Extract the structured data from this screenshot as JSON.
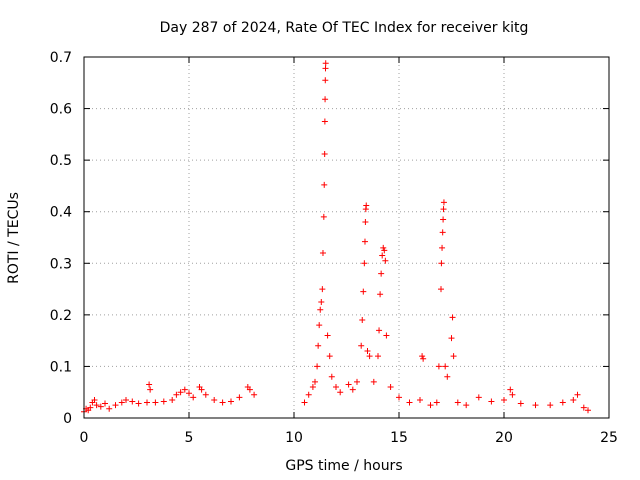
{
  "chart_data": {
    "type": "scatter",
    "title": "Day 287 of 2024, Rate Of TEC Index for receiver kitg",
    "xlabel": "GPS time / hours",
    "ylabel": "ROTI / TECUs",
    "xlim": [
      0,
      25
    ],
    "ylim": [
      0,
      0.7
    ],
    "x_ticks": [
      0,
      5,
      10,
      15,
      20,
      25
    ],
    "y_ticks": [
      0,
      0.1,
      0.2,
      0.3,
      0.4,
      0.5,
      0.6,
      0.7
    ],
    "grid": true,
    "marker": "+",
    "marker_color": "#ff0000",
    "data_gaps_hours": [
      [
        8.2,
        10.4
      ]
    ],
    "series": [
      {
        "name": "ROTI",
        "points": [
          [
            0.0,
            0.012
          ],
          [
            0.1,
            0.018
          ],
          [
            0.2,
            0.015
          ],
          [
            0.3,
            0.02
          ],
          [
            0.4,
            0.03
          ],
          [
            0.5,
            0.035
          ],
          [
            0.6,
            0.025
          ],
          [
            0.8,
            0.022
          ],
          [
            1.0,
            0.028
          ],
          [
            1.2,
            0.018
          ],
          [
            1.5,
            0.025
          ],
          [
            1.8,
            0.03
          ],
          [
            2.0,
            0.035
          ],
          [
            2.3,
            0.032
          ],
          [
            2.6,
            0.028
          ],
          [
            3.0,
            0.03
          ],
          [
            3.1,
            0.065
          ],
          [
            3.15,
            0.055
          ],
          [
            3.4,
            0.03
          ],
          [
            3.8,
            0.032
          ],
          [
            4.2,
            0.035
          ],
          [
            4.4,
            0.045
          ],
          [
            4.6,
            0.05
          ],
          [
            4.8,
            0.055
          ],
          [
            5.0,
            0.048
          ],
          [
            5.2,
            0.04
          ],
          [
            5.5,
            0.06
          ],
          [
            5.6,
            0.055
          ],
          [
            5.8,
            0.045
          ],
          [
            6.2,
            0.035
          ],
          [
            6.6,
            0.03
          ],
          [
            7.0,
            0.032
          ],
          [
            7.4,
            0.04
          ],
          [
            7.8,
            0.06
          ],
          [
            7.9,
            0.055
          ],
          [
            8.1,
            0.045
          ],
          [
            10.5,
            0.03
          ],
          [
            10.7,
            0.045
          ],
          [
            10.9,
            0.06
          ],
          [
            11.0,
            0.07
          ],
          [
            11.1,
            0.1
          ],
          [
            11.15,
            0.14
          ],
          [
            11.2,
            0.18
          ],
          [
            11.25,
            0.21
          ],
          [
            11.3,
            0.225
          ],
          [
            11.35,
            0.25
          ],
          [
            11.38,
            0.32
          ],
          [
            11.42,
            0.39
          ],
          [
            11.44,
            0.452
          ],
          [
            11.46,
            0.512
          ],
          [
            11.47,
            0.575
          ],
          [
            11.48,
            0.618
          ],
          [
            11.49,
            0.655
          ],
          [
            11.5,
            0.678
          ],
          [
            11.51,
            0.688
          ],
          [
            11.6,
            0.16
          ],
          [
            11.7,
            0.12
          ],
          [
            11.8,
            0.08
          ],
          [
            12.0,
            0.06
          ],
          [
            12.2,
            0.05
          ],
          [
            12.6,
            0.065
          ],
          [
            12.8,
            0.055
          ],
          [
            13.0,
            0.07
          ],
          [
            13.2,
            0.14
          ],
          [
            13.25,
            0.19
          ],
          [
            13.3,
            0.245
          ],
          [
            13.35,
            0.3
          ],
          [
            13.38,
            0.342
          ],
          [
            13.4,
            0.38
          ],
          [
            13.42,
            0.405
          ],
          [
            13.44,
            0.412
          ],
          [
            13.5,
            0.13
          ],
          [
            13.6,
            0.12
          ],
          [
            13.8,
            0.07
          ],
          [
            14.0,
            0.12
          ],
          [
            14.05,
            0.17
          ],
          [
            14.1,
            0.24
          ],
          [
            14.15,
            0.28
          ],
          [
            14.2,
            0.315
          ],
          [
            14.25,
            0.33
          ],
          [
            14.3,
            0.325
          ],
          [
            14.35,
            0.305
          ],
          [
            14.4,
            0.16
          ],
          [
            14.6,
            0.06
          ],
          [
            15.0,
            0.04
          ],
          [
            15.5,
            0.03
          ],
          [
            16.0,
            0.035
          ],
          [
            16.1,
            0.12
          ],
          [
            16.15,
            0.115
          ],
          [
            16.5,
            0.025
          ],
          [
            16.8,
            0.03
          ],
          [
            16.9,
            0.1
          ],
          [
            17.0,
            0.25
          ],
          [
            17.02,
            0.3
          ],
          [
            17.05,
            0.33
          ],
          [
            17.08,
            0.36
          ],
          [
            17.1,
            0.385
          ],
          [
            17.12,
            0.405
          ],
          [
            17.14,
            0.418
          ],
          [
            17.2,
            0.1
          ],
          [
            17.3,
            0.08
          ],
          [
            17.5,
            0.155
          ],
          [
            17.55,
            0.195
          ],
          [
            17.6,
            0.12
          ],
          [
            17.8,
            0.03
          ],
          [
            18.2,
            0.025
          ],
          [
            18.8,
            0.04
          ],
          [
            19.4,
            0.032
          ],
          [
            20.0,
            0.035
          ],
          [
            20.3,
            0.055
          ],
          [
            20.4,
            0.045
          ],
          [
            20.8,
            0.028
          ],
          [
            21.5,
            0.025
          ],
          [
            22.2,
            0.025
          ],
          [
            22.8,
            0.03
          ],
          [
            23.3,
            0.035
          ],
          [
            23.5,
            0.045
          ],
          [
            23.8,
            0.02
          ],
          [
            24.0,
            0.015
          ]
        ]
      }
    ]
  }
}
